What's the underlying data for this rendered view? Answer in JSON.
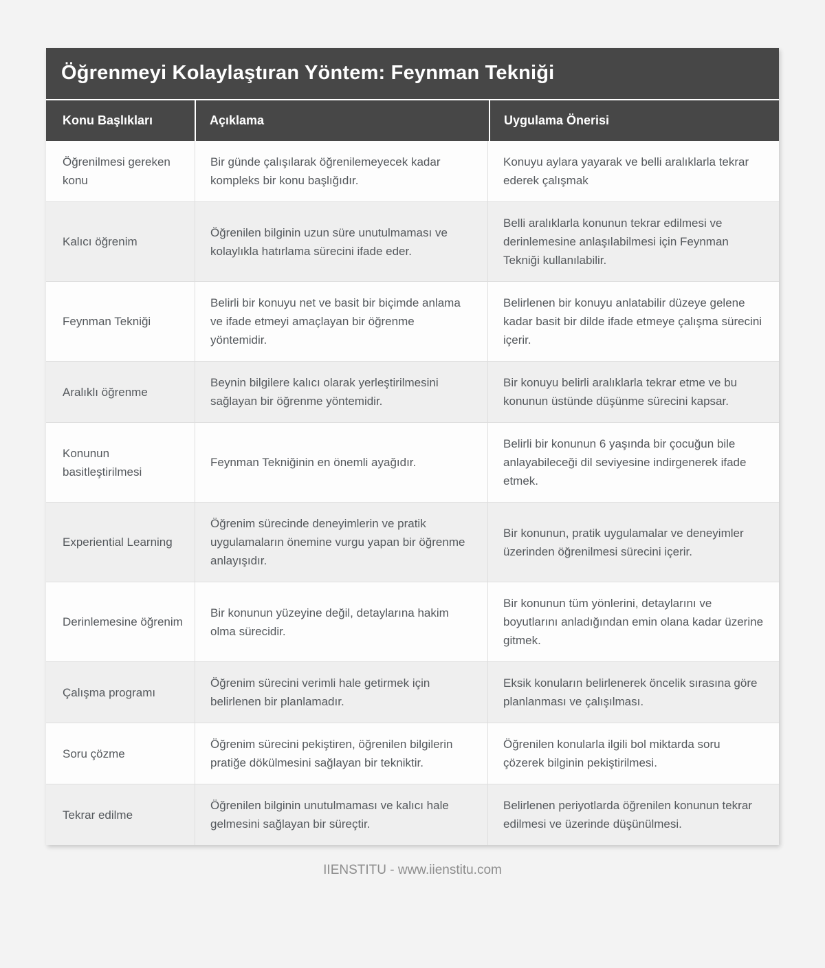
{
  "title": "Öğrenmeyi Kolaylaştıran Yöntem: Feynman Tekniği",
  "columns": [
    "Konu Başlıkları",
    "Açıklama",
    "Uygulama Önerisi"
  ],
  "rows": [
    {
      "topic": "Öğrenilmesi gereken konu",
      "description": "Bir günde çalışılarak öğrenilemeyecek kadar kompleks bir konu başlığıdır.",
      "suggestion": "Konuyu aylara yayarak ve belli aralıklarla tekrar ederek çalışmak"
    },
    {
      "topic": "Kalıcı öğrenim",
      "description": "Öğrenilen bilginin uzun süre unutulmaması ve kolaylıkla hatırlama sürecini ifade eder.",
      "suggestion": "Belli aralıklarla konunun tekrar edilmesi ve derinlemesine anlaşılabilmesi için Feynman Tekniği kullanılabilir."
    },
    {
      "topic": "Feynman Tekniği",
      "description": "Belirli bir konuyu net ve basit bir biçimde anlama ve ifade etmeyi amaçlayan bir öğrenme yöntemidir.",
      "suggestion": "Belirlenen bir konuyu anlatabilir düzeye gelene kadar basit bir dilde ifade etmeye çalışma sürecini içerir."
    },
    {
      "topic": "Aralıklı öğrenme",
      "description": "Beynin bilgilere kalıcı olarak yerleştirilmesini sağlayan bir öğrenme yöntemidir.",
      "suggestion": "Bir konuyu belirli aralıklarla tekrar etme ve bu konunun üstünde düşünme sürecini kapsar."
    },
    {
      "topic": "Konunun basitleştirilmesi",
      "description": "Feynman Tekniğinin en önemli ayağıdır.",
      "suggestion": "Belirli bir konunun 6 yaşında bir çocuğun bile anlayabileceği dil seviyesine indirgenerek ifade etmek."
    },
    {
      "topic": "Experiential Learning",
      "description": "Öğrenim sürecinde deneyimlerin ve pratik uygulamaların önemine vurgu yapan bir öğrenme anlayışıdır.",
      "suggestion": "Bir konunun, pratik uygulamalar ve deneyimler üzerinden öğrenilmesi sürecini içerir."
    },
    {
      "topic": "Derinlemesine öğrenim",
      "description": "Bir konunun yüzeyine değil, detaylarına hakim olma sürecidir.",
      "suggestion": "Bir konunun tüm yönlerini, detaylarını ve boyutlarını anladığından emin olana kadar üzerine gitmek."
    },
    {
      "topic": "Çalışma programı",
      "description": "Öğrenim sürecini verimli hale getirmek için belirlenen bir planlamadır.",
      "suggestion": "Eksik konuların belirlenerek öncelik sırasına göre planlanması ve çalışılması."
    },
    {
      "topic": "Soru çözme",
      "description": "Öğrenim sürecini pekiştiren, öğrenilen bilgilerin pratiğe dökülmesini sağlayan bir tekniktir.",
      "suggestion": "Öğrenilen konularla ilgili bol miktarda soru çözerek bilginin pekiştirilmesi."
    },
    {
      "topic": "Tekrar edilme",
      "description": "Öğrenilen bilginin unutulmaması ve kalıcı hale gelmesini sağlayan bir süreçtir.",
      "suggestion": "Belirlenen periyotlarda öğrenilen konunun tekrar edilmesi ve üzerinde düşünülmesi."
    }
  ],
  "footer": "IIENSTITU - www.iienstitu.com",
  "colors": {
    "header_bg": "#474747",
    "header_text": "#ffffff",
    "row_alt_bg": "#efefef",
    "body_text": "#54585c",
    "page_bg": "#f3f3f3",
    "border": "#dedede",
    "footer_text": "#8d8d8d"
  }
}
